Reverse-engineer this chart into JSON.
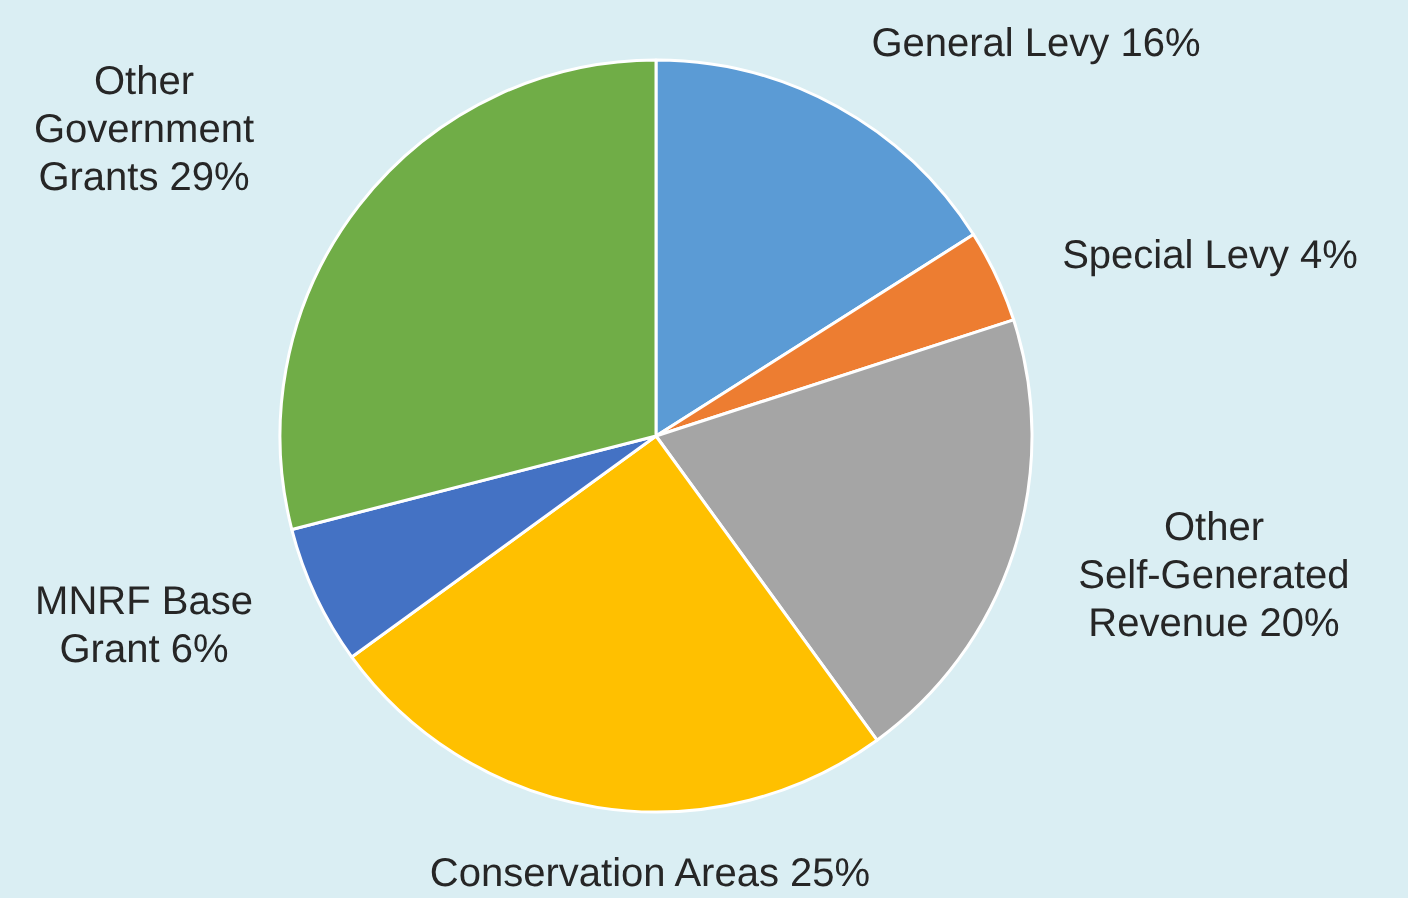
{
  "chart_data": {
    "type": "pie",
    "categories": [
      "General Levy",
      "Special Levy",
      "Other Self-Generated Revenue",
      "Conservation Areas",
      "MNRF Base Grant",
      "Other Government Grants"
    ],
    "values": [
      16,
      4,
      20,
      25,
      6,
      29
    ],
    "value_labels": [
      "16%",
      "4%",
      "20%",
      "25%",
      "6%",
      "29%"
    ],
    "colors": [
      "#5b9bd5",
      "#ed7d31",
      "#a5a5a5",
      "#ffc000",
      "#4472c4",
      "#70ad47"
    ],
    "legend": false
  }
}
